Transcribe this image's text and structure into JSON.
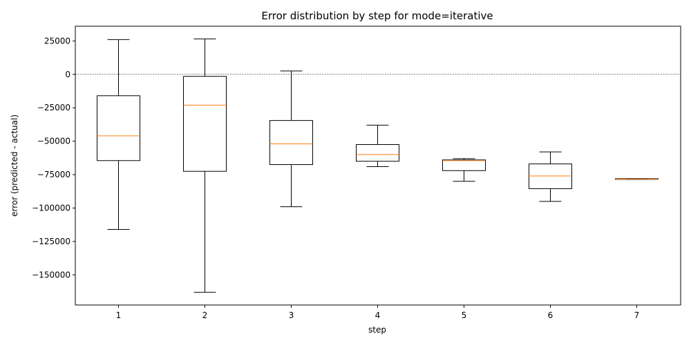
{
  "chart_data": {
    "type": "box",
    "title": "Error distribution by step for mode=iterative",
    "xlabel": "step",
    "ylabel": "error (predicted - actual)",
    "ylim": [
      -172500,
      36000
    ],
    "y_ticks": [
      25000,
      0,
      -25000,
      -50000,
      -75000,
      -100000,
      -125000,
      -150000
    ],
    "y_tick_labels": [
      "25000",
      "0",
      "−25000",
      "−50000",
      "−75000",
      "−100000",
      "−125000",
      "−150000"
    ],
    "categories": [
      "1",
      "2",
      "3",
      "4",
      "5",
      "6",
      "7"
    ],
    "reference_line": 0,
    "grid": false,
    "colors": {
      "box": "#000000",
      "median": "#ff7f0e",
      "reference": "#000000"
    },
    "boxes": [
      {
        "step": "1",
        "whisker_low": -116000,
        "q1": -64500,
        "median": -46000,
        "q3": -16000,
        "whisker_high": 26000
      },
      {
        "step": "2",
        "whisker_low": -163000,
        "q1": -72500,
        "median": -23000,
        "q3": -1500,
        "whisker_high": 26500
      },
      {
        "step": "3",
        "whisker_low": -99000,
        "q1": -67500,
        "median": -52000,
        "q3": -34500,
        "whisker_high": 2500
      },
      {
        "step": "4",
        "whisker_low": -69000,
        "q1": -65000,
        "median": -60000,
        "q3": -52500,
        "whisker_high": -38000
      },
      {
        "step": "5",
        "whisker_low": -80000,
        "q1": -72000,
        "median": -64500,
        "q3": -64000,
        "whisker_high": -63000
      },
      {
        "step": "6",
        "whisker_low": -95000,
        "q1": -85500,
        "median": -76000,
        "q3": -67000,
        "whisker_high": -58000
      },
      {
        "step": "7",
        "whisker_low": -78500,
        "q1": -78500,
        "median": -78300,
        "q3": -78000,
        "whisker_high": -78000
      }
    ]
  }
}
